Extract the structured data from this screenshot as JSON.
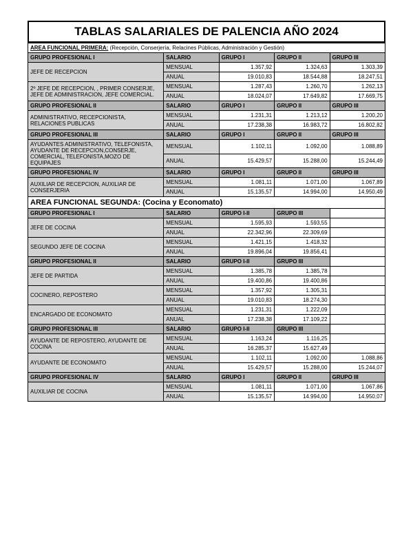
{
  "title": "TABLAS SALARIALES DE PALENCIA AÑO 2024",
  "area1_prefix": "AREA FUNCIONAL PRIMERA:",
  "area1_suffix": " (Recepción, Conserjería, Relacines Públicas, Administración y Gestión)",
  "area2": "AREA FUNCIONAL SEGUNDA: (Cocina y Economato)",
  "col_salario": "SALARIO",
  "col_g1": "GRUPO I",
  "col_g2": "GRUPO II",
  "col_g3": "GRUPO III",
  "col_g12": "GRUPO I-II",
  "mensual": "MENSUAL",
  "anual": "ANUAL",
  "groups": {
    "g1": "GRUPO PROFESIONAL I",
    "g2": "GRUPO PROFESIONAL II",
    "g3": "GRUPO PROFESIONAL III",
    "g4": "GRUPO PROFESIONAL IV"
  },
  "a1": {
    "r1_name": "JEFE DE RECEPCION",
    "r1_m": [
      "1.357,92",
      "1.324,63",
      "1.303,39"
    ],
    "r1_a": [
      "19.010,83",
      "18.544,88",
      "18.247,51"
    ],
    "r2_name": "2º JEFE DE RECEPCION, , PRIMER CONSERJE, JEFE DE ADMINISTRACION, JEFE COMERCIAL.",
    "r2_m": [
      "1.287,43",
      "1.260,70",
      "1.262,13"
    ],
    "r2_a": [
      "18.024,07",
      "17.649,82",
      "17.669,75"
    ],
    "r3_name": "ADMINISTRATIVO, RECEPCIONISTA, RELACIONES PUBLICAS",
    "r3_m": [
      "1.231,31",
      "1.213,12",
      "1.200,20"
    ],
    "r3_a": [
      "17.238,38",
      "16.983,72",
      "16.802,82"
    ],
    "r4_name": "AYUDANTES ADMINISTRATIVO, TELEFONISTA, AYUDANTE DE RECEPCION,CONSERJE, COMERCIAL, TELEFONISTA,MOZO DE EQUIPAJES",
    "r4_m": [
      "1.102,11",
      "1.092,00",
      "1.088,89"
    ],
    "r4_a": [
      "15.429,57",
      "15.288,00",
      "15.244,49"
    ],
    "r5_name": "AUXILIAR DE RECEPCION, AUXILIAR DE CONSERJERIA",
    "r5_m": [
      "1.081,11",
      "1.071,00",
      "1.067,89"
    ],
    "r5_a": [
      "15.135,57",
      "14.994,00",
      "14.950,49"
    ]
  },
  "a2": {
    "r1_name": "JEFE DE COCINA",
    "r1_m": [
      "1.595,93",
      "1.593,55"
    ],
    "r1_a": [
      "22.342,96",
      "22.309,69"
    ],
    "r2_name": "SEGUNDO JEFE DE COCINA",
    "r2_m": [
      "1.421,15",
      "1.418,32"
    ],
    "r2_a": [
      "19.896,04",
      "19.856,41"
    ],
    "r3_name": "JEFE DE PARTIDA",
    "r3_m": [
      "1.385,78",
      "1.385,78"
    ],
    "r3_a": [
      "19.400,86",
      "19.400,86"
    ],
    "r4_name": "COCINERO, REPOSTERO",
    "r4_m": [
      "1.357,92",
      "1.305,31"
    ],
    "r4_a": [
      "19.010,83",
      "18.274,30"
    ],
    "r5_name": "ENCARGADO DE ECONOMATO",
    "r5_m": [
      "1.231,31",
      "1.222,09"
    ],
    "r5_a": [
      "17.238,38",
      "17.109,22"
    ],
    "r6_name": "AYUDANTE DE REPOSTERO, AYUDANTE DE COCINA",
    "r6_m": [
      "1.163,24",
      "1.116,25"
    ],
    "r6_a": [
      "16.285,37",
      "15.627,49"
    ],
    "r7_name": "AYUDANTE DE ECONOMATO",
    "r7_m": [
      "1.102,11",
      "1.092,00",
      "1.088,86"
    ],
    "r7_a": [
      "15.429,57",
      "15.288,00",
      "15.244,07"
    ],
    "r8_name": "AUXILIAR DE COCINA",
    "r8_m": [
      "1.081,11",
      "1.071,00",
      "1.067,86"
    ],
    "r8_a": [
      "15.135,57",
      "14.994,00",
      "14.950,07"
    ]
  }
}
